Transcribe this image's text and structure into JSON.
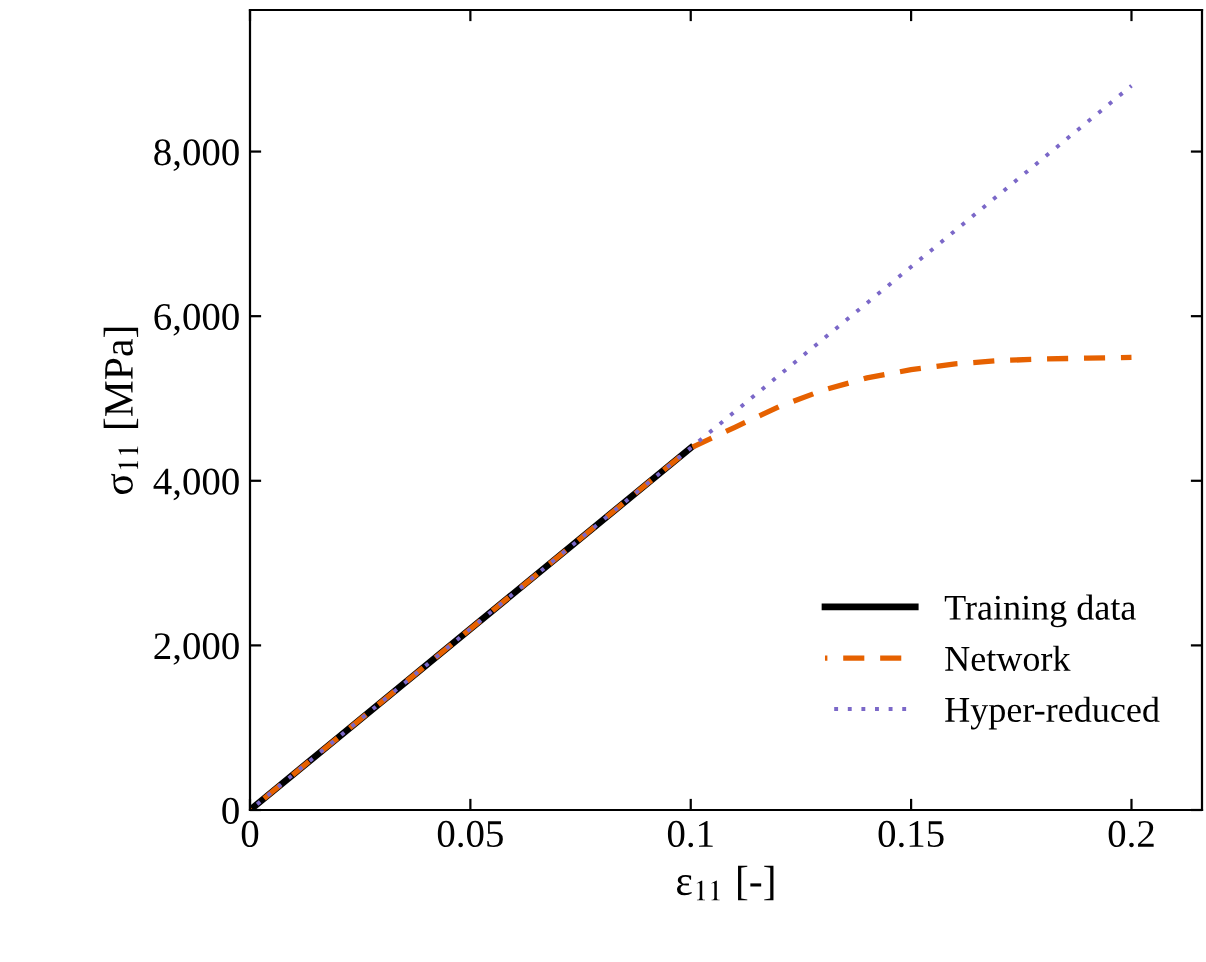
{
  "chart_data": {
    "type": "line",
    "xlabel": "ε$_{11}$ [-]",
    "ylabel": "σ$_{11}$ [MPa]",
    "xlim": [
      0,
      0.216
    ],
    "ylim": [
      0,
      9720
    ],
    "xticks": [
      0,
      0.05,
      0.1,
      0.15,
      0.2
    ],
    "yticks": [
      0,
      {
        "value": 2000,
        "label": "2,000"
      },
      {
        "value": 4000,
        "label": "4,000"
      },
      {
        "value": 6000,
        "label": "6,000"
      },
      {
        "value": 8000,
        "label": "8,000"
      }
    ],
    "grid": false,
    "legend": "bottom right",
    "series": [
      {
        "name": "Training data",
        "color": "#000000",
        "line_style": "solid",
        "x": [
          0,
          0.1
        ],
        "values": [
          0,
          4400
        ]
      },
      {
        "name": "Network",
        "color": "#e66100",
        "line_style": "dashed",
        "x": [
          0,
          0.1,
          0.11,
          0.12,
          0.13,
          0.14,
          0.15,
          0.16,
          0.17,
          0.18,
          0.19,
          0.2
        ],
        "values": [
          0,
          4400,
          4650,
          4900,
          5100,
          5250,
          5350,
          5420,
          5460,
          5480,
          5490,
          5500
        ]
      },
      {
        "name": "Hyper-reduced",
        "color": "#7b68c8",
        "line_style": "dotted",
        "x": [
          0,
          0.2
        ],
        "values": [
          0,
          8800
        ]
      }
    ]
  }
}
